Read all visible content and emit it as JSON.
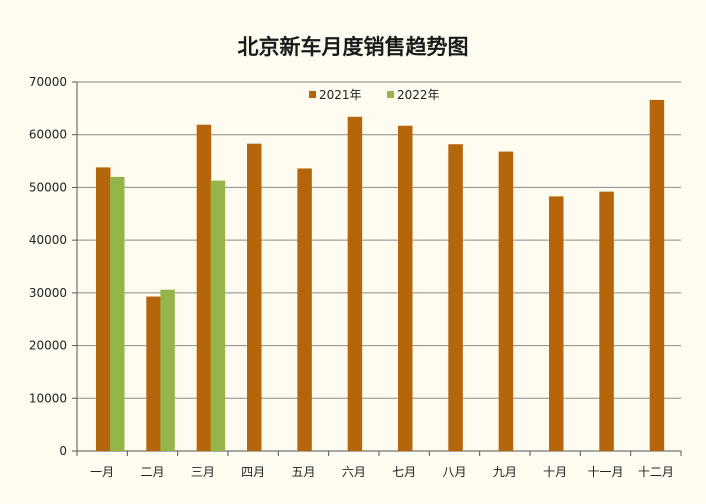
{
  "chart_data": {
    "type": "bar",
    "title": "北京新车月度销售趋势图",
    "categories": [
      "一月",
      "二月",
      "三月",
      "四月",
      "五月",
      "六月",
      "七月",
      "八月",
      "九月",
      "十月",
      "十一月",
      "十二月"
    ],
    "series": [
      {
        "name": "2021年",
        "color": "#b5650a",
        "values": [
          53800,
          29300,
          61900,
          58300,
          53600,
          63400,
          61700,
          58200,
          56800,
          48300,
          49200,
          66600
        ]
      },
      {
        "name": "2022年",
        "color": "#95b54b",
        "values": [
          52000,
          30600,
          51300,
          null,
          null,
          null,
          null,
          null,
          null,
          null,
          null,
          null
        ]
      }
    ],
    "ylim": [
      0,
      70000
    ],
    "yticks": [
      0,
      10000,
      20000,
      30000,
      40000,
      50000,
      60000,
      70000
    ],
    "xlabel": "",
    "ylabel": "",
    "grid": true,
    "legend_position": "top-center"
  }
}
